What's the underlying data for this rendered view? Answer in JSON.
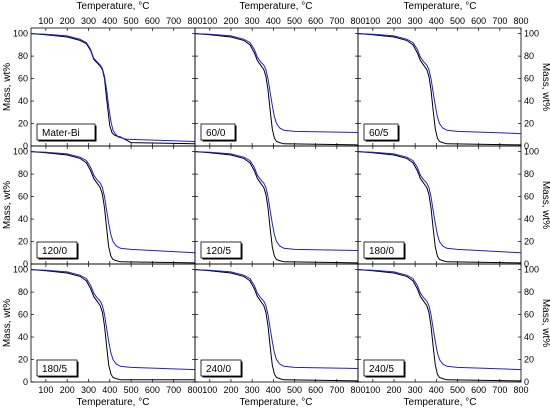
{
  "chart_data": {
    "type": "line",
    "layout": "3x3 grid of panels",
    "colors": {
      "series_a": "#000000",
      "series_b": "#1f1fd6",
      "frame": "#000000"
    },
    "xlim": [
      30,
      800
    ],
    "ylim": [
      0,
      105
    ],
    "x_ticks": [
      "100",
      "200",
      "300",
      "400",
      "500",
      "600",
      "700",
      "800"
    ],
    "y_ticks": [
      "0",
      "20",
      "40",
      "60",
      "80",
      "100"
    ],
    "xlabel": "Temperature, °C",
    "ylabel": "Mass, wt%",
    "panels": [
      {
        "label": "Mater-Bi",
        "series": [
          {
            "x": [
              30,
              100,
              200,
              260,
              290,
              310,
              325,
              340,
              355,
              365,
              375,
              385,
              400,
              410,
              420,
              430,
              450,
              500,
              800
            ],
            "values": [
              100,
              99,
              97,
              94,
              91,
              85,
              77,
              74,
              71,
              68,
              60,
              42,
              18,
              12,
              10,
              9,
              8,
              3,
              2
            ]
          },
          {
            "x": [
              30,
              100,
              200,
              260,
              290,
              310,
              325,
              340,
              355,
              365,
              375,
              385,
              395,
              405,
              415,
              425,
              440,
              480,
              800
            ],
            "values": [
              100,
              99.5,
              98,
              95,
              92,
              86,
              78,
              75,
              72,
              69,
              62,
              50,
              35,
              22,
              14,
              11,
              8,
              6,
              4
            ]
          }
        ]
      },
      {
        "label": "60/0",
        "series": [
          {
            "x": [
              30,
              100,
              200,
              260,
              290,
              310,
              325,
              340,
              355,
              365,
              375,
              385,
              395,
              405,
              415,
              430,
              450,
              800
            ],
            "values": [
              100,
              99,
              97,
              94,
              90,
              83,
              76,
              72,
              68,
              62,
              50,
              32,
              15,
              7,
              4,
              3,
              2,
              1
            ]
          },
          {
            "x": [
              30,
              100,
              200,
              260,
              290,
              310,
              325,
              340,
              355,
              365,
              375,
              385,
              395,
              405,
              415,
              430,
              450,
              500,
              800
            ],
            "values": [
              100,
              99.5,
              98,
              95,
              92,
              86,
              79,
              75,
              72,
              68,
              60,
              48,
              36,
              26,
              20,
              16,
              14,
              13,
              12
            ]
          }
        ]
      },
      {
        "label": "60/5",
        "series": [
          {
            "x": [
              30,
              100,
              200,
              260,
              290,
              310,
              325,
              340,
              355,
              365,
              375,
              385,
              395,
              405,
              415,
              430,
              450,
              800
            ],
            "values": [
              100,
              99,
              97,
              94,
              90,
              83,
              76,
              72,
              68,
              62,
              50,
              32,
              15,
              7,
              4,
              3,
              2,
              1
            ]
          },
          {
            "x": [
              30,
              100,
              200,
              260,
              290,
              310,
              325,
              340,
              355,
              365,
              375,
              385,
              395,
              405,
              415,
              430,
              450,
              500,
              800
            ],
            "values": [
              100,
              99.5,
              98,
              95,
              92,
              86,
              79,
              75,
              72,
              68,
              60,
              48,
              36,
              26,
              20,
              16,
              14,
              13,
              11
            ]
          }
        ]
      },
      {
        "label": "120/0",
        "series": [
          {
            "x": [
              30,
              100,
              200,
              260,
              290,
              310,
              325,
              340,
              355,
              365,
              375,
              385,
              395,
              405,
              415,
              430,
              450,
              800
            ],
            "values": [
              100,
              99,
              97,
              94,
              90,
              83,
              76,
              72,
              68,
              62,
              50,
              32,
              15,
              7,
              4,
              3,
              2,
              1
            ]
          },
          {
            "x": [
              30,
              100,
              200,
              260,
              290,
              310,
              325,
              340,
              355,
              365,
              375,
              385,
              395,
              405,
              415,
              430,
              450,
              500,
              800
            ],
            "values": [
              100,
              99.5,
              98,
              95,
              92,
              86,
              79,
              75,
              72,
              68,
              60,
              48,
              36,
              26,
              20,
              16,
              14,
              13,
              10
            ]
          }
        ]
      },
      {
        "label": "120/5",
        "series": [
          {
            "x": [
              30,
              100,
              200,
              260,
              290,
              310,
              325,
              340,
              355,
              365,
              375,
              385,
              395,
              405,
              415,
              430,
              450,
              800
            ],
            "values": [
              100,
              99,
              97,
              94,
              90,
              83,
              76,
              72,
              68,
              62,
              50,
              32,
              15,
              7,
              4,
              3,
              2,
              1
            ]
          },
          {
            "x": [
              30,
              100,
              200,
              260,
              290,
              310,
              325,
              340,
              355,
              365,
              375,
              385,
              395,
              405,
              415,
              430,
              450,
              500,
              800
            ],
            "values": [
              100,
              99.5,
              98,
              95,
              92,
              86,
              79,
              75,
              72,
              68,
              60,
              48,
              36,
              26,
              20,
              16,
              14,
              13,
              12
            ]
          }
        ]
      },
      {
        "label": "180/0",
        "series": [
          {
            "x": [
              30,
              100,
              200,
              260,
              290,
              310,
              325,
              340,
              355,
              365,
              375,
              385,
              395,
              405,
              415,
              430,
              450,
              800
            ],
            "values": [
              100,
              99,
              97,
              94,
              90,
              83,
              76,
              72,
              68,
              62,
              50,
              32,
              15,
              7,
              4,
              3,
              2,
              1
            ]
          },
          {
            "x": [
              30,
              100,
              200,
              260,
              290,
              310,
              325,
              340,
              355,
              365,
              375,
              385,
              395,
              405,
              415,
              430,
              450,
              500,
              800
            ],
            "values": [
              100,
              99.5,
              98,
              95,
              92,
              86,
              79,
              75,
              72,
              68,
              60,
              48,
              36,
              26,
              20,
              16,
              14,
              13,
              10
            ]
          }
        ]
      },
      {
        "label": "180/5",
        "series": [
          {
            "x": [
              30,
              100,
              200,
              260,
              290,
              310,
              325,
              340,
              355,
              365,
              375,
              385,
              395,
              405,
              415,
              430,
              450,
              800
            ],
            "values": [
              100,
              99,
              97,
              94,
              90,
              83,
              76,
              72,
              68,
              62,
              50,
              32,
              15,
              7,
              4,
              3,
              2,
              2
            ]
          },
          {
            "x": [
              30,
              100,
              200,
              260,
              290,
              310,
              325,
              340,
              355,
              365,
              375,
              385,
              395,
              405,
              415,
              430,
              450,
              500,
              800
            ],
            "values": [
              100,
              99.5,
              98,
              95,
              92,
              86,
              79,
              75,
              72,
              68,
              60,
              48,
              36,
              26,
              20,
              16,
              14,
              13,
              11
            ]
          }
        ]
      },
      {
        "label": "240/0",
        "series": [
          {
            "x": [
              30,
              100,
              200,
              260,
              290,
              310,
              325,
              340,
              355,
              365,
              375,
              385,
              395,
              405,
              415,
              430,
              450,
              800
            ],
            "values": [
              100,
              99,
              97,
              94,
              90,
              83,
              76,
              72,
              68,
              62,
              50,
              32,
              15,
              7,
              4,
              3,
              2,
              1
            ]
          },
          {
            "x": [
              30,
              100,
              200,
              260,
              290,
              310,
              325,
              340,
              355,
              365,
              375,
              385,
              395,
              405,
              415,
              430,
              450,
              500,
              800
            ],
            "values": [
              100,
              99.5,
              98,
              95,
              92,
              86,
              79,
              75,
              72,
              68,
              60,
              48,
              36,
              26,
              20,
              16,
              14,
              13,
              12
            ]
          }
        ]
      },
      {
        "label": "240/5",
        "series": [
          {
            "x": [
              30,
              100,
              200,
              260,
              290,
              310,
              325,
              340,
              355,
              365,
              375,
              385,
              395,
              405,
              415,
              430,
              450,
              800
            ],
            "values": [
              100,
              99,
              97,
              94,
              90,
              83,
              76,
              72,
              68,
              62,
              50,
              32,
              15,
              7,
              4,
              3,
              2,
              1
            ]
          },
          {
            "x": [
              30,
              100,
              200,
              260,
              290,
              310,
              325,
              340,
              355,
              365,
              375,
              385,
              395,
              405,
              415,
              430,
              450,
              500,
              800
            ],
            "values": [
              100,
              99.5,
              98,
              95,
              92,
              86,
              79,
              75,
              72,
              68,
              60,
              48,
              36,
              26,
              20,
              16,
              14,
              13,
              11
            ]
          }
        ]
      }
    ]
  }
}
